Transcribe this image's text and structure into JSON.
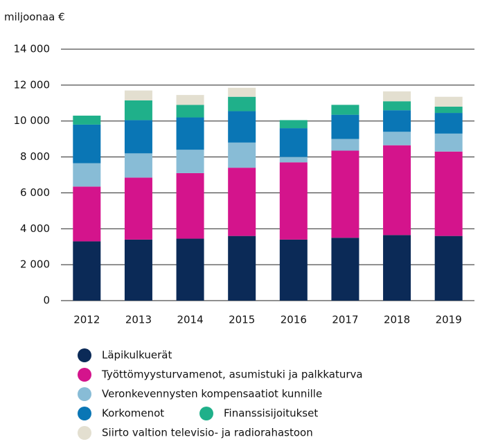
{
  "chart_data": {
    "type": "stacked_bar",
    "ylabel": "miljoonaa €",
    "categories": [
      "2012",
      "2013",
      "2014",
      "2015",
      "2016",
      "2017",
      "2018",
      "2019"
    ],
    "series": [
      {
        "name": "Läpikulkuerät",
        "color": "#0b2a57",
        "values": [
          3300,
          3400,
          3450,
          3600,
          3400,
          3500,
          3650,
          3600
        ]
      },
      {
        "name": "Työttömyysturvamenot, asumistuki ja palkkaturva",
        "color": "#d4148c",
        "values": [
          3050,
          3450,
          3650,
          3800,
          4300,
          4850,
          5000,
          4700
        ]
      },
      {
        "name": "Veronkevennysten kompensaatiot kunnille",
        "color": "#88bcd6",
        "values": [
          1300,
          1350,
          1300,
          1400,
          300,
          650,
          750,
          1000
        ]
      },
      {
        "name": "Korkomenot",
        "color": "#0a76b5",
        "values": [
          2150,
          1850,
          1800,
          1750,
          1600,
          1350,
          1200,
          1150
        ]
      },
      {
        "name": "Finanssisijoitukset",
        "color": "#1fb08a",
        "values": [
          500,
          1100,
          700,
          800,
          450,
          550,
          500,
          350
        ]
      },
      {
        "name": "Siirto valtion televisio- ja radiorahastoon",
        "color": "#e3dfd0",
        "values": [
          null,
          550,
          550,
          500,
          null,
          null,
          550,
          550
        ]
      }
    ],
    "ylim": [
      0,
      14000
    ],
    "yticks": [
      0,
      {
        "value": 2000,
        "label": "2 000"
      },
      {
        "value": 4000,
        "label": "4 000"
      },
      {
        "value": 6000,
        "label": "6 000"
      },
      {
        "value": 8000,
        "label": "8 000"
      },
      {
        "value": 10000,
        "label": "10 000"
      },
      {
        "value": 12000,
        "label": "12 000"
      },
      {
        "value": 14000,
        "label": "14 000"
      }
    ],
    "grid": true
  }
}
